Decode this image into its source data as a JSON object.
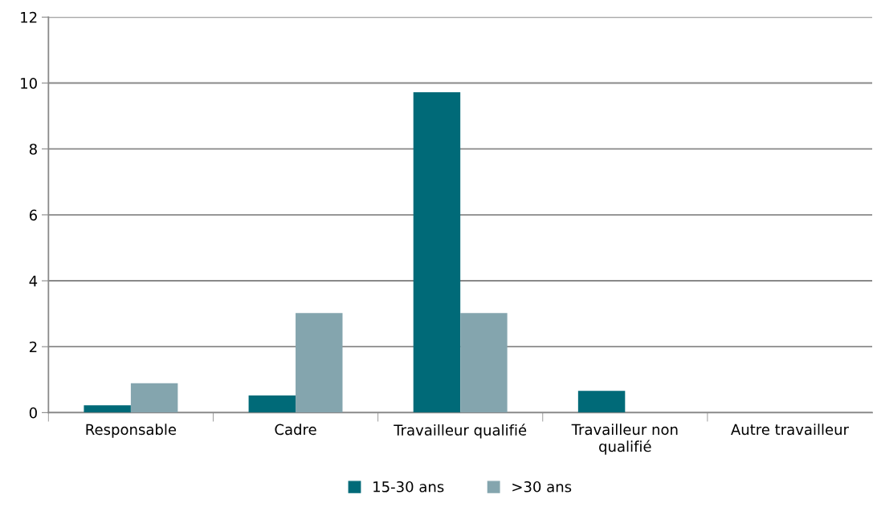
{
  "chart_data": {
    "type": "bar",
    "categories": [
      "Responsable",
      "Cadre",
      "Travailleur qualifié",
      "Travailleur non\nqualifié",
      "Autre travailleur"
    ],
    "series": [
      {
        "name": "15-30 ans",
        "color": "#006a78",
        "values": [
          0.22,
          0.52,
          9.72,
          0.66,
          0
        ]
      },
      {
        "name": ">30 ans",
        "color": "#84a5ae",
        "values": [
          0.89,
          3.02,
          3.02,
          0,
          0
        ]
      }
    ],
    "ylim": [
      0,
      12
    ],
    "yticks": [
      0,
      2,
      4,
      6,
      8,
      10,
      12
    ],
    "grid": "y",
    "legend": "bottom"
  }
}
